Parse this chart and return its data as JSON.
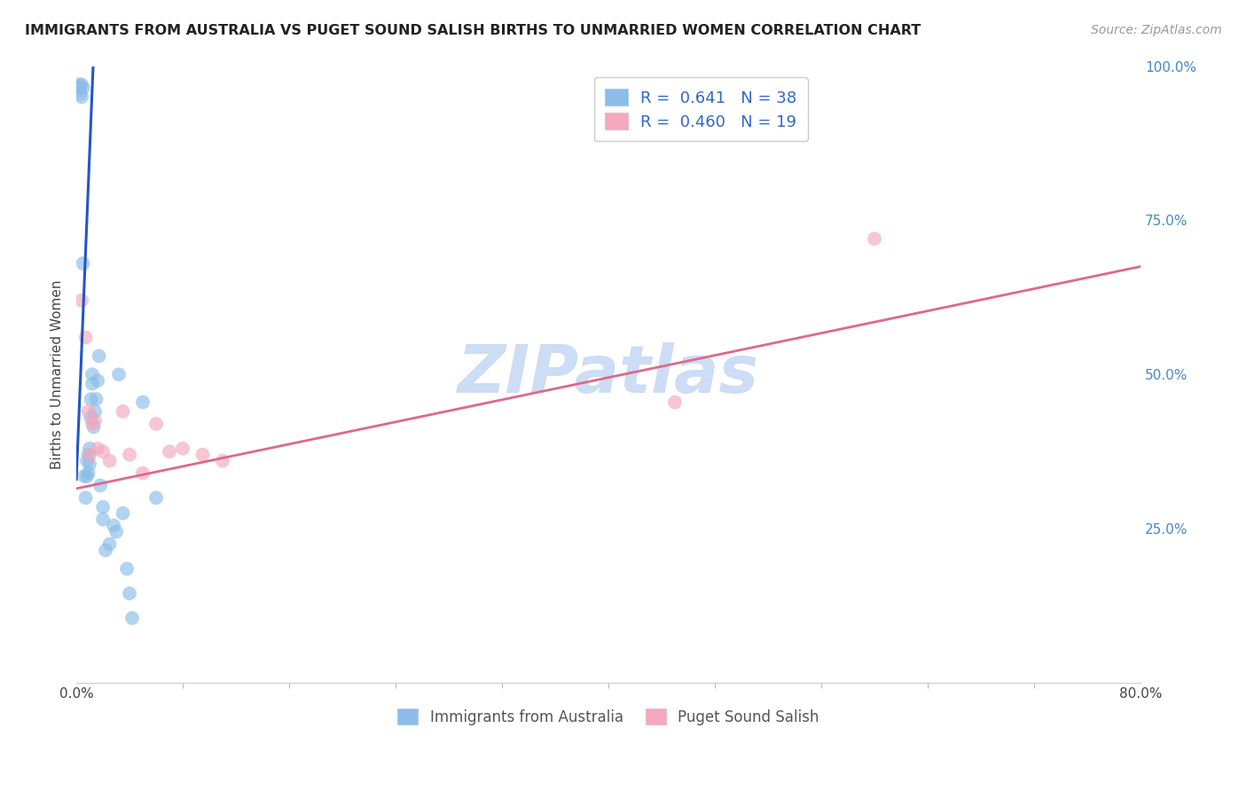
{
  "title": "IMMIGRANTS FROM AUSTRALIA VS PUGET SOUND SALISH BIRTHS TO UNMARRIED WOMEN CORRELATION CHART",
  "source": "Source: ZipAtlas.com",
  "ylabel": "Births to Unmarried Women",
  "xlim": [
    0.0,
    0.8
  ],
  "ylim": [
    0.0,
    1.0
  ],
  "xtick_major_vals": [
    0.0,
    0.8
  ],
  "xtick_major_labels": [
    "0.0%",
    "80.0%"
  ],
  "xtick_minor_vals": [
    0.08,
    0.16,
    0.24,
    0.32,
    0.4,
    0.48,
    0.56,
    0.64,
    0.72
  ],
  "ytick_vals": [
    0.25,
    0.5,
    0.75,
    1.0
  ],
  "ytick_labels": [
    "25.0%",
    "50.0%",
    "75.0%",
    "100.0%"
  ],
  "blue_scatter_x": [
    0.002,
    0.003,
    0.003,
    0.004,
    0.004,
    0.005,
    0.005,
    0.006,
    0.007,
    0.008,
    0.008,
    0.009,
    0.009,
    0.01,
    0.01,
    0.011,
    0.011,
    0.012,
    0.012,
    0.013,
    0.014,
    0.015,
    0.016,
    0.017,
    0.018,
    0.02,
    0.02,
    0.022,
    0.025,
    0.028,
    0.03,
    0.032,
    0.035,
    0.038,
    0.04,
    0.042,
    0.05,
    0.06
  ],
  "blue_scatter_y": [
    0.97,
    0.965,
    0.955,
    0.97,
    0.95,
    0.68,
    0.965,
    0.335,
    0.3,
    0.335,
    0.36,
    0.34,
    0.37,
    0.355,
    0.38,
    0.43,
    0.46,
    0.485,
    0.5,
    0.415,
    0.44,
    0.46,
    0.49,
    0.53,
    0.32,
    0.285,
    0.265,
    0.215,
    0.225,
    0.255,
    0.245,
    0.5,
    0.275,
    0.185,
    0.145,
    0.105,
    0.455,
    0.3
  ],
  "pink_scatter_x": [
    0.004,
    0.007,
    0.009,
    0.01,
    0.012,
    0.014,
    0.016,
    0.02,
    0.025,
    0.035,
    0.04,
    0.05,
    0.06,
    0.07,
    0.08,
    0.095,
    0.11,
    0.6,
    0.45
  ],
  "pink_scatter_y": [
    0.62,
    0.56,
    0.44,
    0.37,
    0.42,
    0.425,
    0.38,
    0.375,
    0.36,
    0.44,
    0.37,
    0.34,
    0.42,
    0.375,
    0.38,
    0.37,
    0.36,
    0.72,
    0.455
  ],
  "blue_line_x": [
    0.0,
    0.013
  ],
  "blue_line_y": [
    0.33,
    1.02
  ],
  "pink_line_x": [
    0.0,
    0.8
  ],
  "pink_line_y": [
    0.315,
    0.675
  ],
  "blue_dot_color": "#8bbde8",
  "pink_dot_color": "#f4a8bc",
  "blue_line_color": "#2255cc",
  "pink_line_color": "#e06888",
  "watermark_color": "#ccddf5",
  "background_color": "#ffffff",
  "grid_color": "#dddddd",
  "title_fontsize": 11.5,
  "axis_label_color": "#444444",
  "right_tick_color": "#4488cc",
  "legend_blue_label": "R =  0.641   N = 38",
  "legend_pink_label": "R =  0.460   N = 19",
  "bottom_legend_blue": "Immigrants from Australia",
  "bottom_legend_pink": "Puget Sound Salish"
}
